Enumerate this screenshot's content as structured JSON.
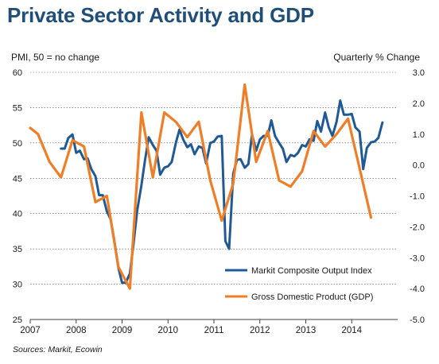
{
  "chart_data": {
    "type": "line",
    "title": "Private Sector Activity and GDP",
    "ylabel_left": "PMI, 50 = no change",
    "ylabel_right": "Quarterly % Change",
    "source": "Sources: Markit, Ecowin",
    "x_ticks": [
      "2007",
      "2008",
      "2009",
      "2010",
      "2011",
      "2012",
      "2013",
      "2014"
    ],
    "xlim": [
      2007.0,
      2015.0
    ],
    "y_left": {
      "lim": [
        25,
        60
      ],
      "ticks": [
        "25",
        "30",
        "35",
        "40",
        "45",
        "50",
        "55",
        "60"
      ]
    },
    "y_right": {
      "lim": [
        -5.0,
        3.0
      ],
      "ticks": [
        "-5.0",
        "-4.0",
        "-3.0",
        "-2.0",
        "-1.0",
        "0.0",
        "1.0",
        "2.0",
        "3.0"
      ]
    },
    "grid": true,
    "legend_position": "bottom-right",
    "series": [
      {
        "name": "Markit Composite Output Index",
        "axis": "left",
        "color": "#1f5a96",
        "points": [
          [
            2007.67,
            49.2
          ],
          [
            2007.75,
            49.2
          ],
          [
            2007.83,
            50.7
          ],
          [
            2007.92,
            51.2
          ],
          [
            2008.0,
            48.6
          ],
          [
            2008.08,
            48.9
          ],
          [
            2008.17,
            47.7
          ],
          [
            2008.25,
            47.8
          ],
          [
            2008.33,
            46.3
          ],
          [
            2008.42,
            45.3
          ],
          [
            2008.5,
            42.6
          ],
          [
            2008.58,
            42.6
          ],
          [
            2008.67,
            40.3
          ],
          [
            2008.75,
            39.2
          ],
          [
            2008.83,
            36.2
          ],
          [
            2008.92,
            32.3
          ],
          [
            2009.0,
            30.2
          ],
          [
            2009.08,
            30.2
          ],
          [
            2009.17,
            31.5
          ],
          [
            2009.25,
            35.7
          ],
          [
            2009.33,
            40.5
          ],
          [
            2009.42,
            44.0
          ],
          [
            2009.5,
            47.6
          ],
          [
            2009.58,
            50.8
          ],
          [
            2009.67,
            49.7
          ],
          [
            2009.75,
            48.9
          ],
          [
            2009.83,
            45.5
          ],
          [
            2009.92,
            46.5
          ],
          [
            2010.0,
            46.7
          ],
          [
            2010.08,
            47.3
          ],
          [
            2010.17,
            50.0
          ],
          [
            2010.25,
            51.9
          ],
          [
            2010.33,
            50.5
          ],
          [
            2010.42,
            49.4
          ],
          [
            2010.5,
            49.8
          ],
          [
            2010.58,
            48.4
          ],
          [
            2010.67,
            49.5
          ],
          [
            2010.75,
            49.3
          ],
          [
            2010.83,
            47.1
          ],
          [
            2010.92,
            50.0
          ],
          [
            2011.0,
            50.2
          ],
          [
            2011.08,
            50.9
          ],
          [
            2011.17,
            51.0
          ],
          [
            2011.25,
            36.1
          ],
          [
            2011.33,
            35.0
          ],
          [
            2011.42,
            45.7
          ],
          [
            2011.5,
            47.6
          ],
          [
            2011.58,
            47.7
          ],
          [
            2011.67,
            46.5
          ],
          [
            2011.75,
            47.0
          ],
          [
            2011.83,
            51.2
          ],
          [
            2011.92,
            48.9
          ],
          [
            2012.0,
            50.5
          ],
          [
            2012.08,
            51.0
          ],
          [
            2012.17,
            51.0
          ],
          [
            2012.25,
            53.2
          ],
          [
            2012.33,
            51.0
          ],
          [
            2012.42,
            50.0
          ],
          [
            2012.5,
            49.2
          ],
          [
            2012.58,
            47.3
          ],
          [
            2012.67,
            48.3
          ],
          [
            2012.75,
            48.1
          ],
          [
            2012.83,
            48.6
          ],
          [
            2012.92,
            49.7
          ],
          [
            2013.0,
            49.5
          ],
          [
            2013.08,
            50.5
          ],
          [
            2013.17,
            50.3
          ],
          [
            2013.25,
            53.1
          ],
          [
            2013.33,
            51.6
          ],
          [
            2013.42,
            54.3
          ],
          [
            2013.5,
            52.2
          ],
          [
            2013.58,
            51.0
          ],
          [
            2013.67,
            53.0
          ],
          [
            2013.75,
            56.0
          ],
          [
            2013.83,
            54.0
          ],
          [
            2013.92,
            54.0
          ],
          [
            2014.0,
            54.1
          ],
          [
            2014.08,
            52.2
          ],
          [
            2014.17,
            51.6
          ],
          [
            2014.25,
            46.3
          ],
          [
            2014.33,
            49.3
          ],
          [
            2014.42,
            50.1
          ],
          [
            2014.5,
            50.2
          ],
          [
            2014.58,
            50.7
          ],
          [
            2014.67,
            52.9
          ]
        ]
      },
      {
        "name": "Gross Domestic Product (GDP)",
        "axis": "right",
        "color": "#f07e26",
        "points": [
          [
            2007.0,
            1.2
          ],
          [
            2007.17,
            1.0
          ],
          [
            2007.42,
            0.1
          ],
          [
            2007.67,
            -0.4
          ],
          [
            2007.92,
            0.8
          ],
          [
            2008.17,
            0.6
          ],
          [
            2008.42,
            -1.2
          ],
          [
            2008.67,
            -1.0
          ],
          [
            2008.92,
            -3.3
          ],
          [
            2009.17,
            -4.0
          ],
          [
            2009.42,
            1.7
          ],
          [
            2009.67,
            -0.4
          ],
          [
            2009.92,
            1.7
          ],
          [
            2010.17,
            1.4
          ],
          [
            2010.42,
            0.9
          ],
          [
            2010.67,
            1.4
          ],
          [
            2010.92,
            -0.5
          ],
          [
            2011.17,
            -1.8
          ],
          [
            2011.42,
            -0.6
          ],
          [
            2011.67,
            2.6
          ],
          [
            2011.92,
            0.1
          ],
          [
            2012.17,
            1.1
          ],
          [
            2012.42,
            -0.5
          ],
          [
            2012.67,
            -0.7
          ],
          [
            2012.92,
            -0.2
          ],
          [
            2013.17,
            1.1
          ],
          [
            2013.42,
            0.6
          ],
          [
            2013.67,
            1.0
          ],
          [
            2013.92,
            1.5
          ],
          [
            2014.17,
            -0.1
          ],
          [
            2014.42,
            -1.7
          ]
        ]
      }
    ]
  }
}
